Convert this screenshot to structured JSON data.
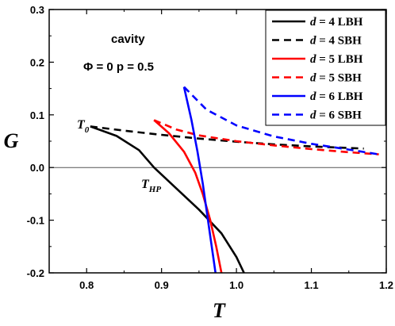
{
  "chart_data": {
    "type": "line",
    "xlabel": "T",
    "ylabel": "G",
    "xlim": [
      0.75,
      1.2
    ],
    "ylim": [
      -0.2,
      0.3
    ],
    "xticks": [
      "0.8",
      "0.9",
      "1.0",
      "1.1",
      "1.2"
    ],
    "yticks": [
      "-0.2",
      "-0.1",
      "0.0",
      "0.1",
      "0.2",
      "0.3"
    ],
    "reference_line_y": 0.0,
    "grid": false,
    "legend_position": "top-right",
    "annotations": {
      "cavity": "cavity",
      "params": "Φ = 0  p = 0.5",
      "t0": "T",
      "t0_sub": "0",
      "thp": "T",
      "thp_sub": "HP"
    },
    "series": [
      {
        "name": "d = 4  LBH",
        "legend_d": "d",
        "legend_rest": " = 4  LBH",
        "color": "#000000",
        "dash": "solid",
        "points": [
          [
            0.805,
            0.078
          ],
          [
            0.84,
            0.06
          ],
          [
            0.87,
            0.033
          ],
          [
            0.89,
            0.0
          ],
          [
            0.92,
            -0.04
          ],
          [
            0.95,
            -0.08
          ],
          [
            0.98,
            -0.125
          ],
          [
            1.0,
            -0.17
          ],
          [
            1.01,
            -0.2
          ]
        ]
      },
      {
        "name": "d = 4  SBH",
        "legend_d": "d",
        "legend_rest": " = 4  SBH",
        "color": "#000000",
        "dash": "dashed",
        "points": [
          [
            0.805,
            0.078
          ],
          [
            0.85,
            0.07
          ],
          [
            0.9,
            0.062
          ],
          [
            0.95,
            0.055
          ],
          [
            1.0,
            0.049
          ],
          [
            1.05,
            0.044
          ],
          [
            1.1,
            0.04
          ],
          [
            1.17,
            0.036
          ]
        ]
      },
      {
        "name": "d = 5  LBH",
        "legend_d": "d",
        "legend_rest": " = 5  LBH",
        "color": "#ff0000",
        "dash": "solid",
        "points": [
          [
            0.89,
            0.09
          ],
          [
            0.91,
            0.065
          ],
          [
            0.93,
            0.03
          ],
          [
            0.945,
            -0.01
          ],
          [
            0.955,
            -0.05
          ],
          [
            0.965,
            -0.1
          ],
          [
            0.973,
            -0.15
          ],
          [
            0.98,
            -0.2
          ]
        ]
      },
      {
        "name": "d = 5  SBH",
        "legend_d": "d",
        "legend_rest": " = 5  SBH",
        "color": "#ff0000",
        "dash": "dashed",
        "points": [
          [
            0.89,
            0.09
          ],
          [
            0.92,
            0.072
          ],
          [
            0.95,
            0.061
          ],
          [
            1.0,
            0.05
          ],
          [
            1.05,
            0.042
          ],
          [
            1.1,
            0.035
          ],
          [
            1.15,
            0.029
          ],
          [
            1.19,
            0.025
          ]
        ]
      },
      {
        "name": "d = 6  LBH",
        "legend_d": "d",
        "legend_rest": " = 6  LBH",
        "color": "#0000ff",
        "dash": "solid",
        "points": [
          [
            0.93,
            0.153
          ],
          [
            0.94,
            0.09
          ],
          [
            0.948,
            0.03
          ],
          [
            0.955,
            -0.03
          ],
          [
            0.962,
            -0.1
          ],
          [
            0.968,
            -0.16
          ],
          [
            0.972,
            -0.2
          ]
        ]
      },
      {
        "name": "d = 6  SBH",
        "legend_d": "d",
        "legend_rest": " = 6  SBH",
        "color": "#0000ff",
        "dash": "dashed",
        "points": [
          [
            0.93,
            0.153
          ],
          [
            0.96,
            0.11
          ],
          [
            1.0,
            0.08
          ],
          [
            1.05,
            0.059
          ],
          [
            1.1,
            0.045
          ],
          [
            1.15,
            0.034
          ],
          [
            1.19,
            0.025
          ]
        ]
      }
    ]
  }
}
